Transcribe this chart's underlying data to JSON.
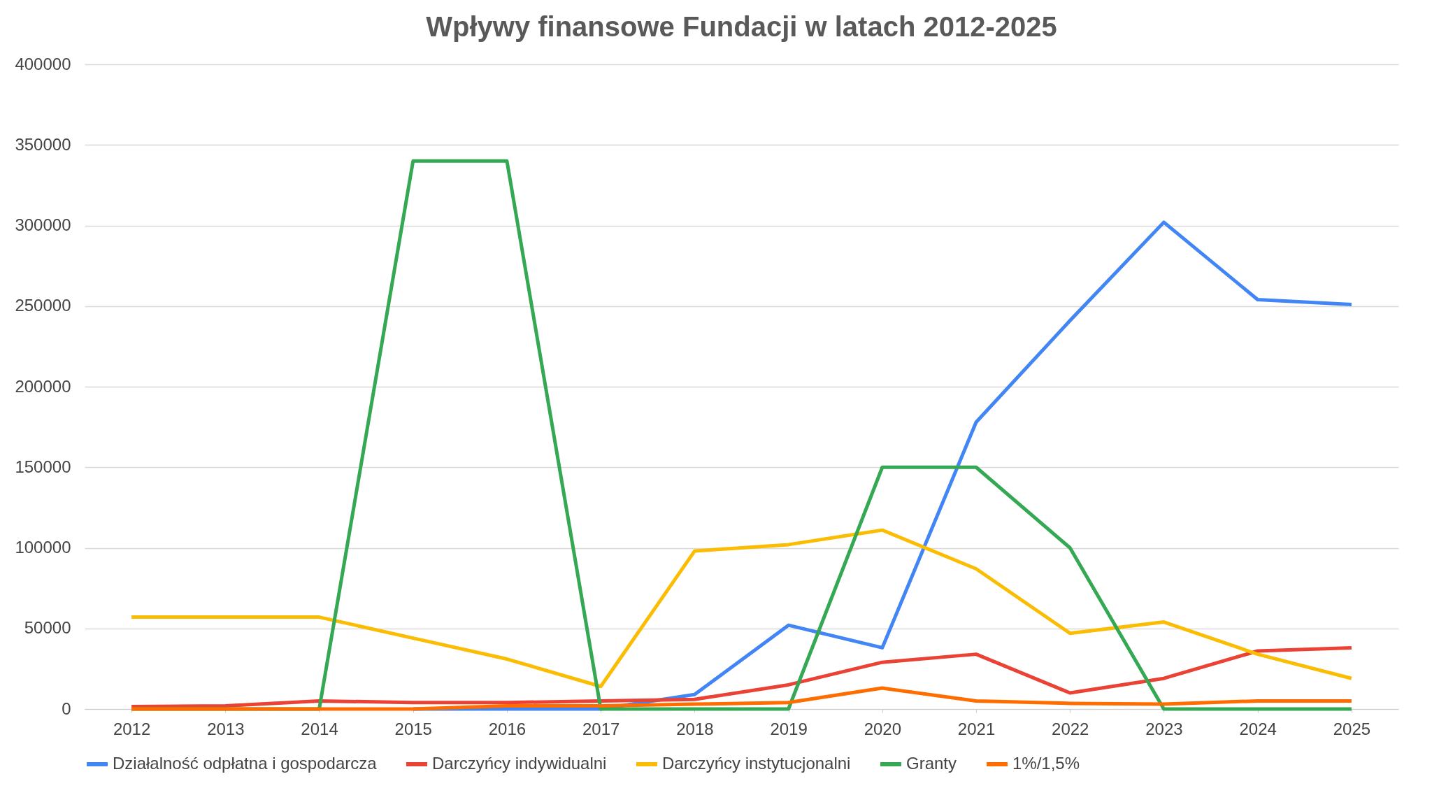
{
  "chart_data": {
    "type": "line",
    "title": "Wpływy finansowe Fundacji w latach 2012-2025",
    "categories": [
      "2012",
      "2013",
      "2014",
      "2015",
      "2016",
      "2017",
      "2018",
      "2019",
      "2020",
      "2021",
      "2022",
      "2023",
      "2024",
      "2025"
    ],
    "series": [
      {
        "name": "Działalność odpłatna i gospodarcza",
        "color": "#4285f4",
        "values": [
          null,
          null,
          null,
          0,
          0,
          0,
          9000,
          52000,
          38000,
          178000,
          241000,
          302000,
          254000,
          251000
        ]
      },
      {
        "name": "Darczyńcy indywidualni",
        "color": "#ea4335",
        "values": [
          1500,
          2000,
          5000,
          4000,
          4000,
          5000,
          6000,
          15000,
          29000,
          34000,
          10000,
          19000,
          36000,
          38000
        ]
      },
      {
        "name": "Darczyńcy instytucjonalni",
        "color": "#fbbc04",
        "values": [
          57000,
          57000,
          57000,
          44000,
          31000,
          14000,
          98000,
          102000,
          111000,
          87000,
          47000,
          54000,
          34000,
          19000
        ]
      },
      {
        "name": "Granty",
        "color": "#34a853",
        "values": [
          0,
          0,
          0,
          340000,
          340000,
          0,
          0,
          0,
          150000,
          150000,
          100000,
          0,
          0,
          0
        ]
      },
      {
        "name": "1%/1,5%",
        "color": "#ff6d01",
        "values": [
          0,
          0,
          0,
          0,
          2000,
          2000,
          3000,
          4000,
          13000,
          5000,
          3500,
          3000,
          5000,
          5000
        ]
      }
    ],
    "ylim": [
      0,
      400000
    ],
    "yticks": [
      0,
      50000,
      100000,
      150000,
      200000,
      250000,
      300000,
      350000,
      400000
    ],
    "grid": "y",
    "legend": "bottom",
    "marker": "none",
    "line_style": "solid"
  }
}
